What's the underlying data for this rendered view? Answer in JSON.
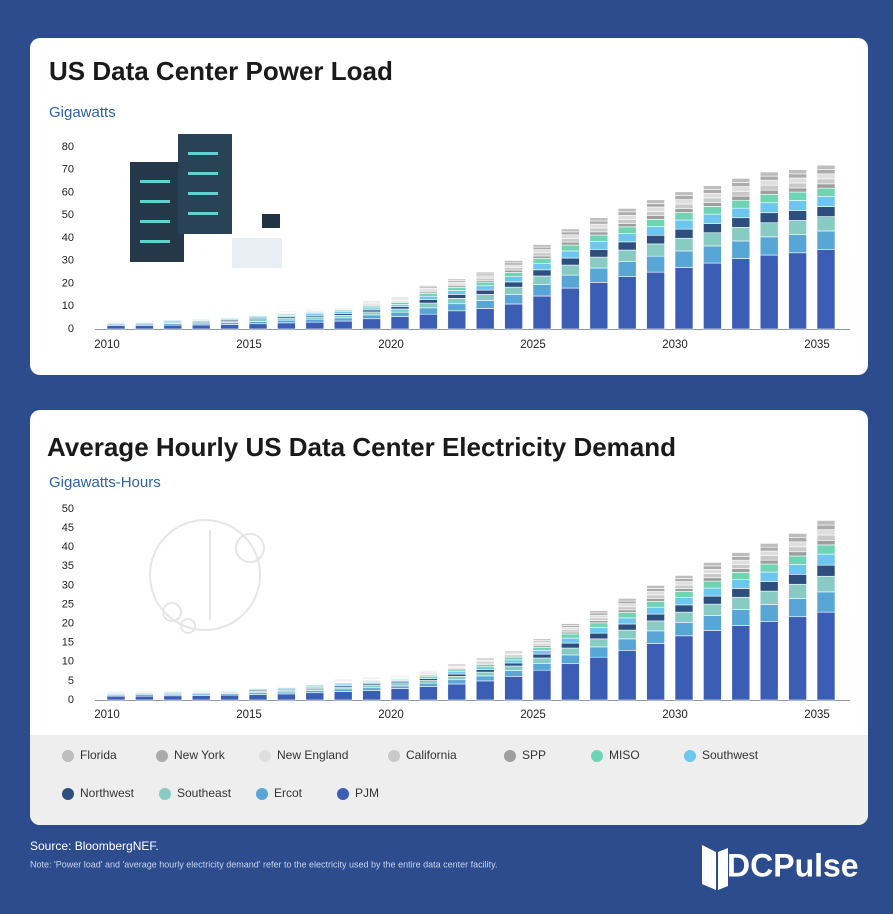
{
  "chart_data": [
    {
      "type": "bar",
      "stacked": true,
      "title": "US Data Center Power Load",
      "y_label": "Gigawatts",
      "categories": [
        "2010",
        null,
        null,
        null,
        null,
        "2015",
        null,
        null,
        null,
        null,
        "2020",
        null,
        null,
        null,
        null,
        "2025",
        null,
        null,
        null,
        null,
        "2030",
        null,
        null,
        null,
        null,
        "2035"
      ],
      "ylim": [
        0,
        80
      ],
      "yticks": [
        0,
        10,
        20,
        30,
        40,
        50,
        60,
        70,
        80
      ],
      "series": [
        {
          "values": [
            0.1,
            0.1,
            0.2,
            0.2,
            0.2,
            0.2,
            0.3,
            0.3,
            0.3,
            0.4,
            0.4,
            0.6,
            0.7,
            0.8,
            1.0,
            1.1,
            1.3,
            1.4,
            1.5,
            1.6,
            1.7,
            1.7,
            1.8,
            1.8,
            1.8,
            1.9
          ]
        },
        {
          "values": [
            0.1,
            0.1,
            0.2,
            0.2,
            0.2,
            0.2,
            0.3,
            0.3,
            0.3,
            0.4,
            0.4,
            0.6,
            0.7,
            0.8,
            1.0,
            1.1,
            1.3,
            1.4,
            1.5,
            1.6,
            1.7,
            1.7,
            1.8,
            1.8,
            1.8,
            1.9
          ]
        },
        {
          "values": [
            0.2,
            0.2,
            0.2,
            0.2,
            0.2,
            0.3,
            0.3,
            0.4,
            0.4,
            0.5,
            0.5,
            0.8,
            0.8,
            1.0,
            1.1,
            1.4,
            1.6,
            1.7,
            1.8,
            1.9,
            2.0,
            2.0,
            2.1,
            2.2,
            2.2,
            2.2
          ]
        },
        {
          "values": [
            0.2,
            0.2,
            0.2,
            0.2,
            0.2,
            0.3,
            0.3,
            0.4,
            0.4,
            0.5,
            0.5,
            0.8,
            0.8,
            1.0,
            1.1,
            1.4,
            1.6,
            1.7,
            1.8,
            1.9,
            2.0,
            2.0,
            2.1,
            2.2,
            2.2,
            2.2
          ]
        },
        {
          "values": [
            0.1,
            0.1,
            0.2,
            0.2,
            0.2,
            0.2,
            0.3,
            0.3,
            0.3,
            0.4,
            0.4,
            0.6,
            0.7,
            0.8,
            1.0,
            1.1,
            1.3,
            1.4,
            1.5,
            1.6,
            1.7,
            1.7,
            1.8,
            1.8,
            1.8,
            1.9
          ]
        },
        {
          "values": [
            0.3,
            0.3,
            0.3,
            0.4,
            0.4,
            0.5,
            0.5,
            0.6,
            0.7,
            0.8,
            0.9,
            1.3,
            1.4,
            1.6,
            1.9,
            2.3,
            2.6,
            2.9,
            3.0,
            3.2,
            3.3,
            3.4,
            3.5,
            3.7,
            3.7,
            3.7
          ]
        },
        {
          "values": [
            0.3,
            0.3,
            0.4,
            0.4,
            0.5,
            0.6,
            0.6,
            0.7,
            0.8,
            0.9,
            1.0,
            1.5,
            1.7,
            1.9,
            2.3,
            2.7,
            3.1,
            3.4,
            3.6,
            3.8,
            4.0,
            4.1,
            4.2,
            4.4,
            4.4,
            4.4
          ]
        },
        {
          "values": [
            0.3,
            0.3,
            0.4,
            0.4,
            0.5,
            0.6,
            0.6,
            0.7,
            0.8,
            0.9,
            1.0,
            1.5,
            1.7,
            1.9,
            2.3,
            2.7,
            3.1,
            3.4,
            3.6,
            3.8,
            4.0,
            4.1,
            4.2,
            4.4,
            4.4,
            4.4
          ]
        },
        {
          "values": [
            0.4,
            0.5,
            0.6,
            0.6,
            0.7,
            0.8,
            0.9,
            1.0,
            1.1,
            1.3,
            1.4,
            2.1,
            2.4,
            2.7,
            3.2,
            3.8,
            4.4,
            4.8,
            5.1,
            5.4,
            5.6,
            5.8,
            6.0,
            6.2,
            6.2,
            6.3
          ]
        },
        {
          "values": [
            0.6,
            0.6,
            0.7,
            0.8,
            0.9,
            1.0,
            1.2,
            1.3,
            1.4,
            1.7,
            1.9,
            2.8,
            3.1,
            3.5,
            4.2,
            5.0,
            5.7,
            6.3,
            6.6,
            7.0,
            7.3,
            7.5,
            7.7,
            8.0,
            8.0,
            8.1
          ]
        },
        {
          "values": [
            1.5,
            1.6,
            1.7,
            1.8,
            2,
            2.3,
            2.7,
            3,
            3.5,
            4.5,
            5.5,
            6.5,
            8,
            9,
            11,
            14.5,
            18,
            20.5,
            23,
            25,
            27,
            29,
            31,
            32.5,
            33.5,
            35
          ]
        }
      ]
    },
    {
      "type": "bar",
      "stacked": true,
      "title": "Average Hourly US Data Center Electricity Demand",
      "y_label": "Gigawatts-Hours",
      "categories": [
        "2010",
        null,
        null,
        null,
        null,
        "2015",
        null,
        null,
        null,
        null,
        "2020",
        null,
        null,
        null,
        null,
        "2025",
        null,
        null,
        null,
        null,
        "2030",
        null,
        null,
        null,
        null,
        "2035"
      ],
      "ylim": [
        0,
        50
      ],
      "yticks": [
        0,
        5,
        10,
        15,
        20,
        25,
        30,
        35,
        40,
        45,
        50
      ],
      "series": [
        {
          "name": "Florida",
          "color": "#bdbdbd",
          "values": [
            0.1,
            0.1,
            0.1,
            0.1,
            0.1,
            0.1,
            0.1,
            0.1,
            0.2,
            0.2,
            0.2,
            0.2,
            0.3,
            0.3,
            0.3,
            0.4,
            0.5,
            0.6,
            0.7,
            0.8,
            0.8,
            0.9,
            1.0,
            1.0,
            1.1,
            1.2
          ]
        },
        {
          "name": "New York",
          "color": "#ababab",
          "values": [
            0.1,
            0.1,
            0.1,
            0.1,
            0.1,
            0.1,
            0.1,
            0.1,
            0.2,
            0.2,
            0.2,
            0.2,
            0.3,
            0.3,
            0.3,
            0.4,
            0.5,
            0.6,
            0.7,
            0.8,
            0.8,
            0.9,
            1.0,
            1.0,
            1.1,
            1.2
          ]
        },
        {
          "name": "New England",
          "color": "#dedede",
          "values": [
            0.1,
            0.1,
            0.1,
            0.1,
            0.1,
            0.1,
            0.1,
            0.2,
            0.2,
            0.2,
            0.2,
            0.3,
            0.3,
            0.4,
            0.4,
            0.5,
            0.6,
            0.7,
            0.8,
            0.9,
            0.9,
            1.1,
            1.1,
            1.2,
            1.3,
            1.4
          ]
        },
        {
          "name": "California",
          "color": "#c9c9c9",
          "values": [
            0.1,
            0.1,
            0.1,
            0.1,
            0.1,
            0.1,
            0.1,
            0.2,
            0.2,
            0.2,
            0.2,
            0.3,
            0.3,
            0.4,
            0.4,
            0.5,
            0.6,
            0.7,
            0.8,
            0.9,
            0.9,
            1.1,
            1.1,
            1.2,
            1.3,
            1.4
          ]
        },
        {
          "name": "SPP",
          "color": "#9e9e9e",
          "values": [
            0.1,
            0.1,
            0.1,
            0.1,
            0.1,
            0.1,
            0.1,
            0.1,
            0.2,
            0.2,
            0.2,
            0.2,
            0.3,
            0.3,
            0.3,
            0.4,
            0.5,
            0.6,
            0.7,
            0.8,
            0.8,
            0.9,
            1.0,
            1.0,
            1.1,
            1.2
          ]
        },
        {
          "name": "MISO",
          "color": "#6fd4b4",
          "values": [
            0.2,
            0.2,
            0.2,
            0.2,
            0.2,
            0.2,
            0.2,
            0.3,
            0.3,
            0.3,
            0.3,
            0.4,
            0.5,
            0.6,
            0.7,
            0.8,
            1.1,
            1.2,
            1.4,
            1.5,
            1.6,
            1.8,
            1.9,
            2.1,
            2.2,
            2.4
          ]
        },
        {
          "name": "Southwest",
          "color": "#6cc6ef",
          "values": [
            0.2,
            0.2,
            0.2,
            0.2,
            0.2,
            0.3,
            0.3,
            0.3,
            0.4,
            0.4,
            0.4,
            0.5,
            0.6,
            0.7,
            0.8,
            1.0,
            1.3,
            1.5,
            1.6,
            1.8,
            1.9,
            2.1,
            2.3,
            2.5,
            2.6,
            2.9
          ]
        },
        {
          "name": "Northwest",
          "color": "#2c4f7f",
          "values": [
            0.2,
            0.2,
            0.2,
            0.2,
            0.2,
            0.3,
            0.3,
            0.3,
            0.4,
            0.4,
            0.4,
            0.5,
            0.6,
            0.7,
            0.8,
            1.0,
            1.3,
            1.5,
            1.6,
            1.8,
            1.9,
            2.1,
            2.3,
            2.5,
            2.6,
            2.9
          ]
        },
        {
          "name": "Southeast",
          "color": "#88cbc2",
          "values": [
            0.3,
            0.3,
            0.3,
            0.3,
            0.3,
            0.4,
            0.4,
            0.5,
            0.5,
            0.6,
            0.6,
            0.7,
            0.9,
            1.0,
            1.2,
            1.4,
            1.8,
            2.1,
            2.3,
            2.6,
            2.7,
            3.0,
            3.2,
            3.5,
            3.7,
            4.1
          ]
        },
        {
          "name": "Ercot",
          "color": "#58a6d6",
          "values": [
            0.3,
            0.4,
            0.4,
            0.4,
            0.4,
            0.5,
            0.5,
            0.6,
            0.7,
            0.7,
            0.7,
            0.9,
            1.1,
            1.3,
            1.5,
            1.8,
            2.3,
            2.7,
            3.0,
            3.3,
            3.5,
            3.9,
            4.2,
            4.5,
            4.8,
            5.3
          ]
        },
        {
          "name": "PJM",
          "color": "#3c5db4",
          "values": [
            1.0,
            1.0,
            1.1,
            1.2,
            1.3,
            1.4,
            1.6,
            1.9,
            2.2,
            2.5,
            3.0,
            3.5,
            4.2,
            5.0,
            6.2,
            7.8,
            9.5,
            11.2,
            13,
            14.8,
            16.8,
            18.2,
            19.5,
            20.5,
            21.8,
            23
          ]
        }
      ]
    }
  ],
  "footer": {
    "source": "Source: BloombergNEF.",
    "note": "Note: 'Power load' and 'average hourly electricity demand' refer to the electricity used by the entire data center facility.",
    "brand": "DCPulse"
  }
}
